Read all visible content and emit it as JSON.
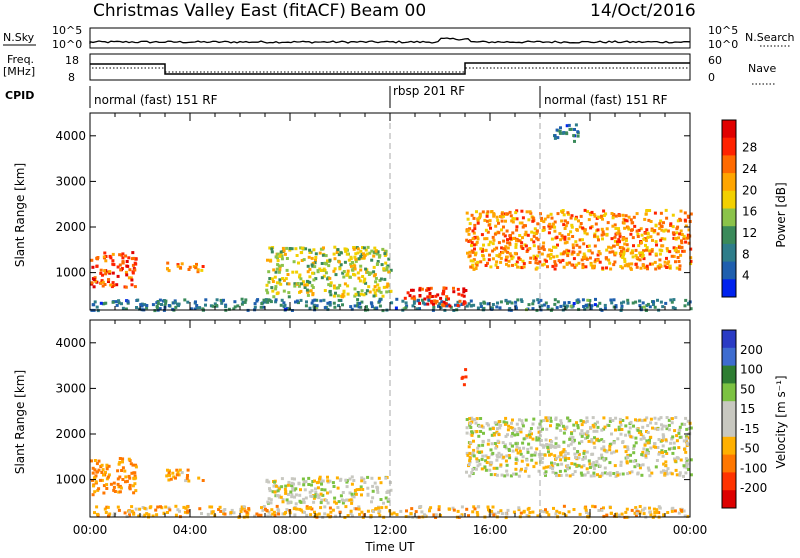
{
  "header": {
    "station": "Christmas Valley East (fitACF)",
    "beam": "Beam 00",
    "date": "14/Oct/2016"
  },
  "small_panels": {
    "nsky_label": "N.Sky",
    "nsky_ticks": [
      "10^5",
      "10^0"
    ],
    "nsearch_label": "N.Search",
    "nsearch_ticks": [
      "10^5",
      "10^0"
    ],
    "freq_label_1": "Freq.",
    "freq_label_2": "[MHz]",
    "freq_ticks": [
      "18",
      "8"
    ],
    "nave_label": "Nave",
    "nave_ticks": [
      "60",
      "0"
    ],
    "cpid_label": "CPID"
  },
  "cpid_segments": [
    {
      "label": "normal (fast) 151 RF",
      "start_hour": 0
    },
    {
      "label": "rbsp 201 RF",
      "start_hour": 12
    },
    {
      "label": "normal (fast) 151 RF",
      "start_hour": 17
    }
  ],
  "colors": {
    "power_scale": [
      "#0022ee",
      "#1f5fae",
      "#2e7d8a",
      "#3a8a5a",
      "#8bc34a",
      "#f2d000",
      "#ffa500",
      "#ff6a00",
      "#ff2200",
      "#e00000"
    ],
    "velocity_scale": [
      "#2a3bc4",
      "#3e6ccf",
      "#2e7d32",
      "#7cc242",
      "#c8c8c0",
      "#c8c8c0",
      "#ffb000",
      "#ff7700",
      "#ff3300",
      "#dd0000"
    ]
  },
  "chart_data": [
    {
      "type": "heatmap",
      "name": "power",
      "ylabel": "Slant Range [km]",
      "xlabel": "Time UT",
      "x_ticks": [
        "00:00",
        "04:00",
        "08:00",
        "12:00",
        "16:00",
        "20:00",
        "00:00"
      ],
      "y_ticks": [
        "1000",
        "2000",
        "3000",
        "4000"
      ],
      "xlim": [
        0,
        24
      ],
      "ylim": [
        180,
        4500
      ],
      "colorbar_label": "Power [dB]",
      "colorbar_ticks": [
        "4",
        "8",
        "12",
        "16",
        "20",
        "24",
        "28"
      ],
      "features": [
        {
          "x": [
            0.0,
            1.8
          ],
          "y": [
            700,
            1500
          ],
          "value": 26
        },
        {
          "x": [
            3.0,
            4.5
          ],
          "y": [
            1050,
            1250
          ],
          "value": 24
        },
        {
          "x": [
            0.0,
            24.0
          ],
          "y": [
            200,
            450
          ],
          "value": 8
        },
        {
          "x": [
            7.0,
            12.0
          ],
          "y": [
            500,
            1600
          ],
          "value": 16
        },
        {
          "x": [
            12.5,
            15.0
          ],
          "y": [
            300,
            700
          ],
          "value": 28
        },
        {
          "x": [
            15.0,
            24.0
          ],
          "y": [
            1100,
            2400
          ],
          "value": 22
        },
        {
          "x": [
            18.5,
            19.5
          ],
          "y": [
            3900,
            4300
          ],
          "value": 8
        }
      ]
    },
    {
      "type": "heatmap",
      "name": "velocity",
      "ylabel": "Slant Range [km]",
      "xlabel": "Time UT",
      "x_ticks": [
        "00:00",
        "04:00",
        "08:00",
        "12:00",
        "16:00",
        "20:00",
        "00:00"
      ],
      "y_ticks": [
        "1000",
        "2000",
        "3000",
        "4000"
      ],
      "xlim": [
        0,
        24
      ],
      "ylim": [
        180,
        4500
      ],
      "colorbar_label": "Velocity [m s⁻¹]",
      "colorbar_ticks": [
        "200",
        "100",
        "50",
        "15",
        "-15",
        "-50",
        "-100",
        "-200"
      ],
      "features": [
        {
          "x": [
            0.0,
            1.8
          ],
          "y": [
            700,
            1500
          ],
          "value": -60
        },
        {
          "x": [
            3.0,
            4.5
          ],
          "y": [
            1000,
            1250
          ],
          "value": -40
        },
        {
          "x": [
            0.0,
            24.0
          ],
          "y": [
            200,
            450
          ],
          "value": -30
        },
        {
          "x": [
            7.0,
            12.0
          ],
          "y": [
            500,
            1100
          ],
          "value": 0
        },
        {
          "x": [
            15.0,
            24.0
          ],
          "y": [
            1100,
            2400
          ],
          "value": 0
        },
        {
          "x": [
            14.8,
            15.0
          ],
          "y": [
            3100,
            3500
          ],
          "value": -150
        }
      ]
    }
  ],
  "x_axis_title": "Time UT"
}
